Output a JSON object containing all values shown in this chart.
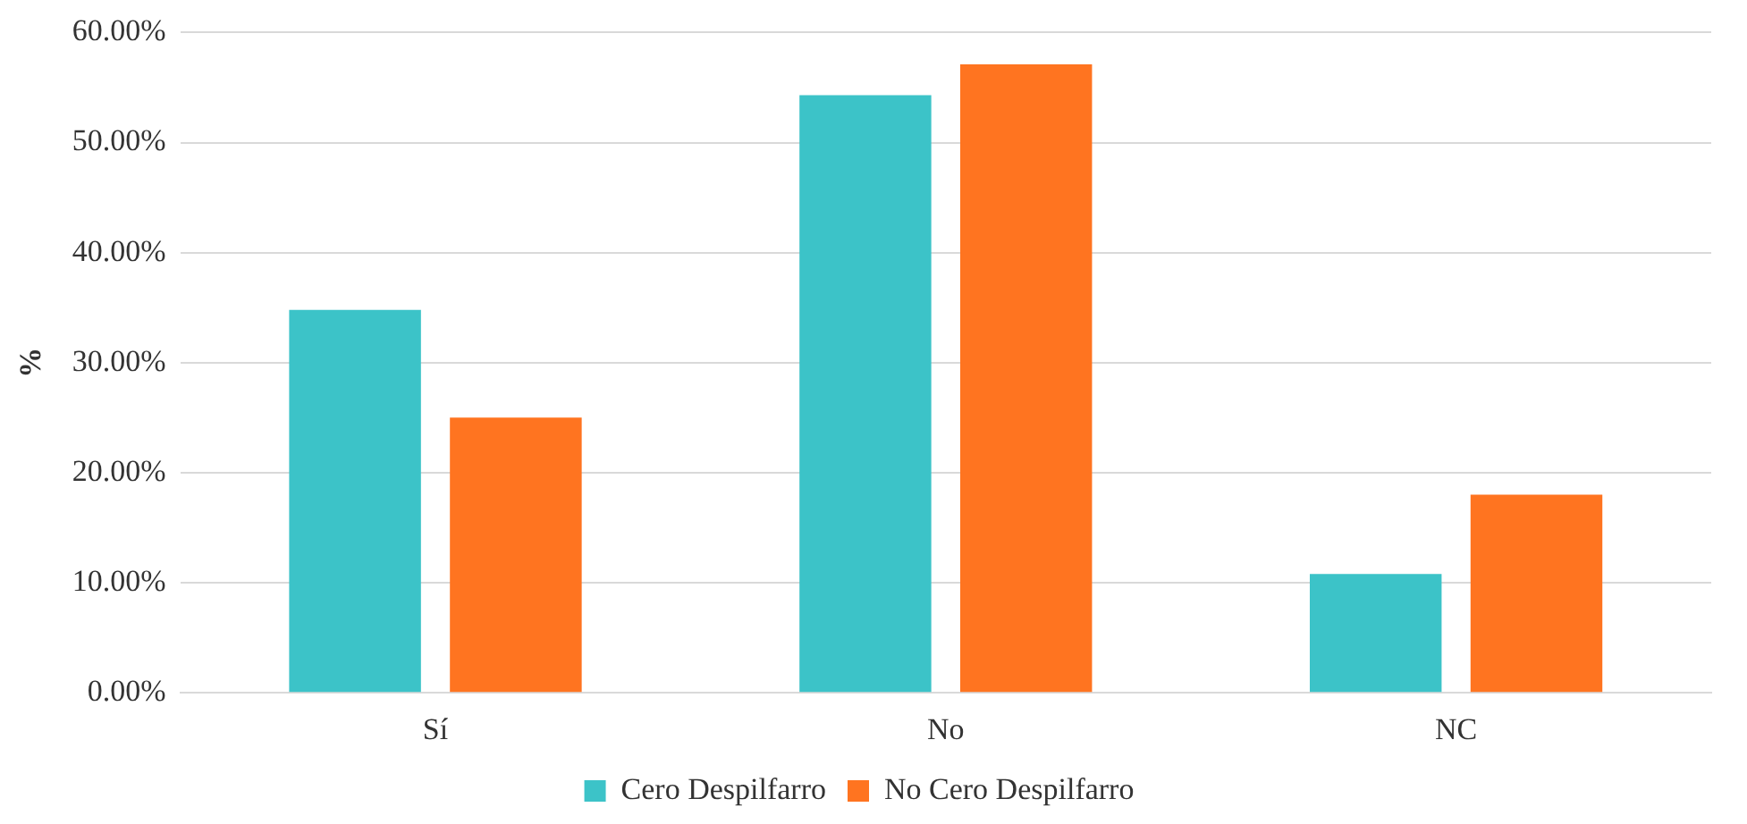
{
  "chart_data": {
    "type": "bar",
    "ylabel": "%",
    "categories": [
      "Sí",
      "No",
      "NC"
    ],
    "series": [
      {
        "name": "Cero Despilfarro",
        "color": "#3cc3c8",
        "values": [
          34.8,
          54.3,
          10.8
        ]
      },
      {
        "name": "No Cero Despilfarro",
        "color": "#ff7420",
        "values": [
          25.0,
          57.1,
          18.0
        ]
      }
    ],
    "ylim": [
      0,
      60
    ],
    "yticks": [
      {
        "value": 0,
        "label": "0.00%"
      },
      {
        "value": 10,
        "label": "10.00%"
      },
      {
        "value": 20,
        "label": "20.00%"
      },
      {
        "value": 30,
        "label": "30.00%"
      },
      {
        "value": 40,
        "label": "40.00%"
      },
      {
        "value": 50,
        "label": "50.00%"
      },
      {
        "value": 60,
        "label": "60.00%"
      }
    ],
    "grid": "y",
    "legend": "bottom"
  }
}
